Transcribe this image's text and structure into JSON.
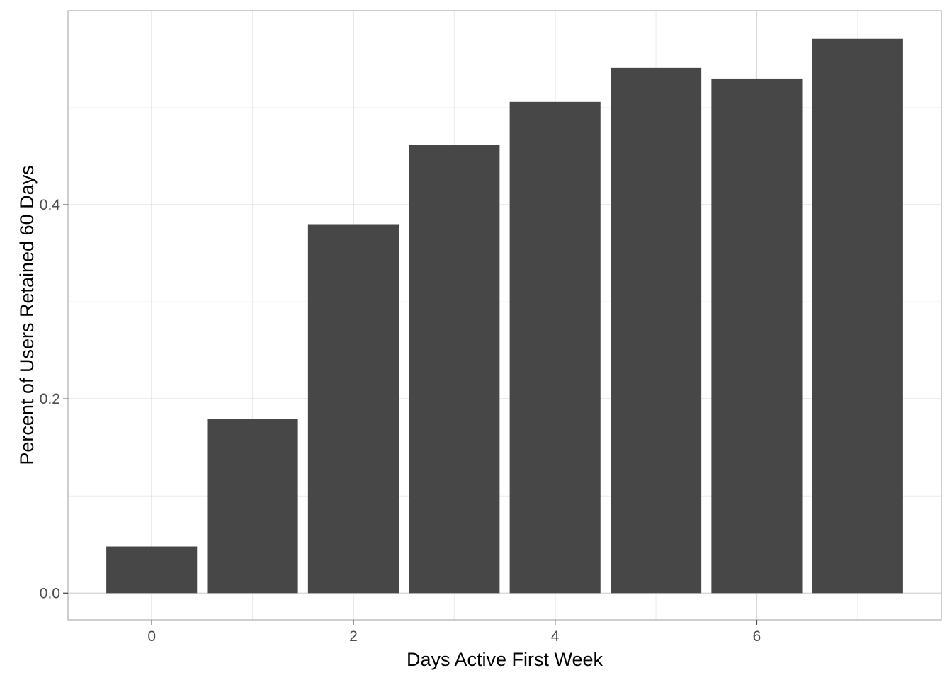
{
  "chart_data": {
    "type": "bar",
    "x": [
      0,
      1,
      2,
      3,
      4,
      5,
      6,
      7
    ],
    "values": [
      0.048,
      0.179,
      0.38,
      0.462,
      0.506,
      0.541,
      0.53,
      0.571
    ],
    "xlabel": "Days Active First Week",
    "ylabel": "Percent of Users Retained 60 Days",
    "xlim": [
      -0.83,
      7.83
    ],
    "ylim": [
      -0.0275,
      0.6
    ],
    "x_ticks": [
      0,
      2,
      4,
      6
    ],
    "x_tick_labels": [
      "0",
      "2",
      "4",
      "6"
    ],
    "y_ticks": [
      0.0,
      0.2,
      0.4
    ],
    "y_tick_labels": [
      "0.0",
      "0.2",
      "0.4"
    ],
    "x_minor_ticks": [
      1,
      3,
      5,
      7
    ],
    "y_minor_ticks": [
      0.1,
      0.3,
      0.5
    ],
    "grid": true,
    "legend": "none",
    "bar_color": "#474747",
    "grid_color": "#d9d9d9",
    "minor_grid_color": "#ebebeb",
    "panel_border_color": "#b3b3b3",
    "tick_color": "#4d4d4d"
  }
}
